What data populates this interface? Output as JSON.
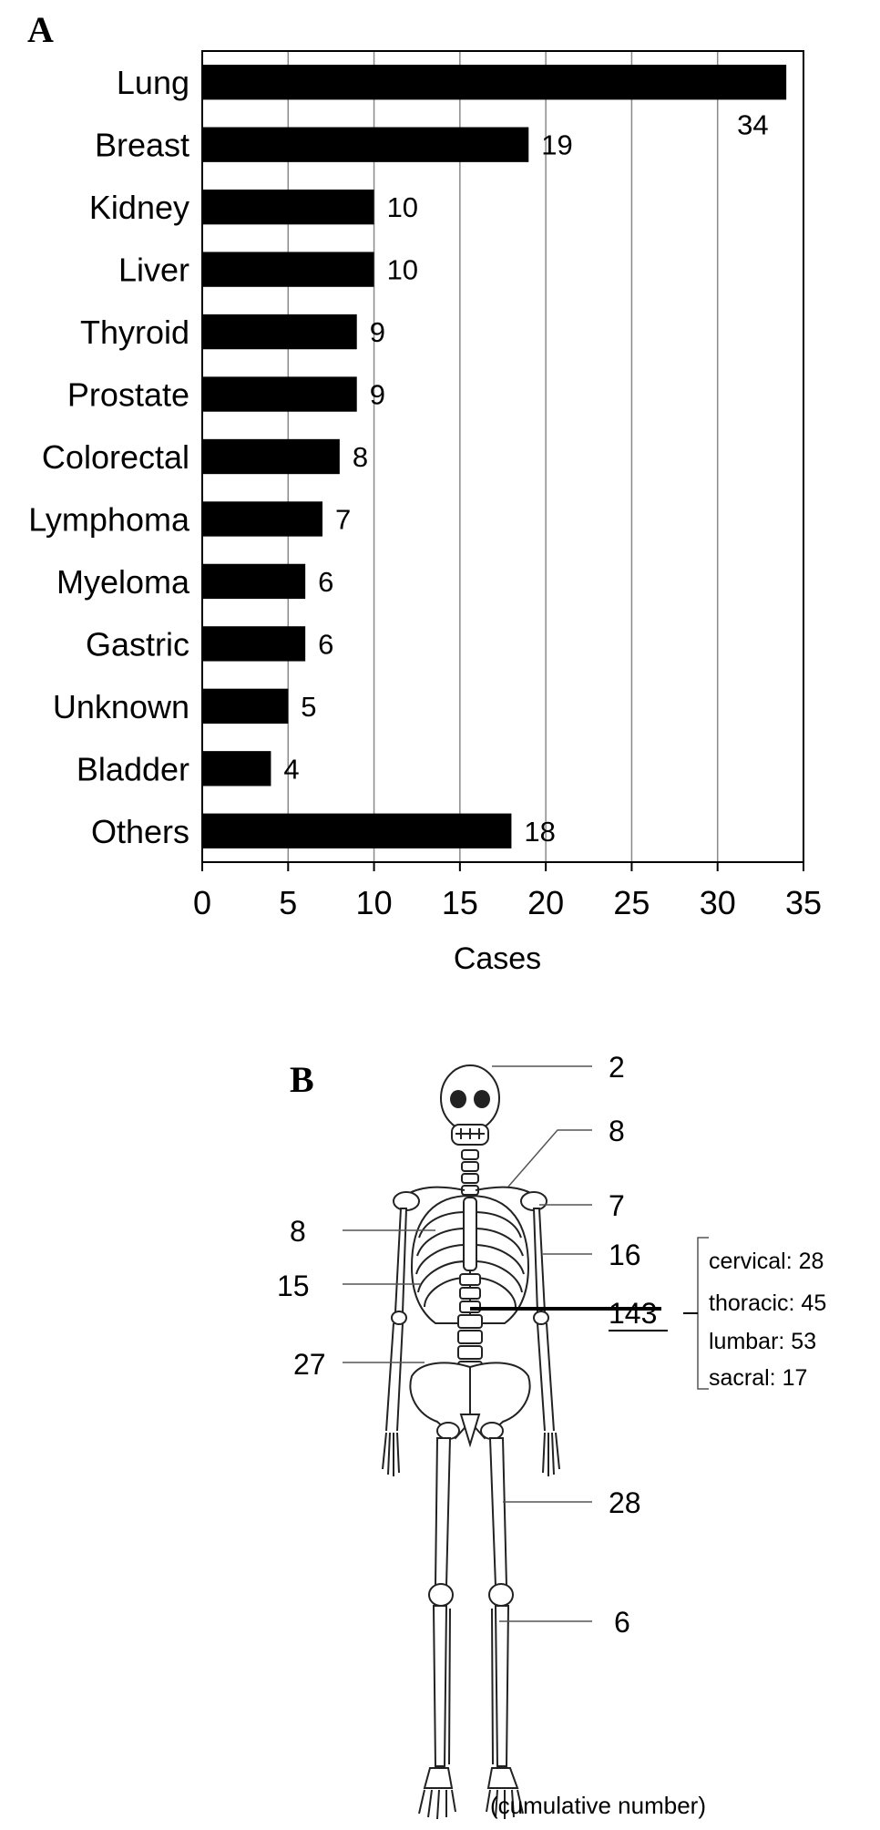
{
  "panel_a": {
    "letter": "A"
  },
  "panel_b": {
    "letter": "B"
  },
  "chart_data": {
    "type": "bar",
    "orientation": "horizontal",
    "categories": [
      "Lung",
      "Breast",
      "Kidney",
      "Liver",
      "Thyroid",
      "Prostate",
      "Colorectal",
      "Lymphoma",
      "Myeloma",
      "Gastric",
      "Unknown",
      "Bladder",
      "Others"
    ],
    "values": [
      34,
      19,
      10,
      10,
      9,
      9,
      8,
      7,
      6,
      6,
      5,
      4,
      18
    ],
    "value_labels": [
      "34",
      "19",
      "10",
      "10",
      "9",
      "9",
      "8",
      "7",
      "6",
      "6",
      "5",
      "4",
      "18"
    ],
    "xlabel": "Cases",
    "ylabel": "",
    "xlim": [
      0,
      35
    ],
    "xticks": [
      0,
      5,
      10,
      15,
      20,
      25,
      30,
      35
    ],
    "xtick_labels": [
      "0",
      "5",
      "10",
      "15",
      "20",
      "25",
      "30",
      "35"
    ],
    "grid": true,
    "bar_color": "#000000"
  },
  "skeleton": {
    "sites": [
      {
        "name": "skull",
        "count": "2"
      },
      {
        "name": "clavicle",
        "count": "8"
      },
      {
        "name": "scapula",
        "count": "7"
      },
      {
        "name": "sternum",
        "count": "8"
      },
      {
        "name": "humerus",
        "count": "16"
      },
      {
        "name": "ribs",
        "count": "15"
      },
      {
        "name": "spine",
        "count": "143"
      },
      {
        "name": "pelvis",
        "count": "27"
      },
      {
        "name": "femur",
        "count": "28"
      },
      {
        "name": "tibia",
        "count": "6"
      }
    ],
    "spine_breakdown": [
      "cervical: 28",
      "thoracic: 45",
      "lumbar: 53",
      "sacral: 17"
    ],
    "footnote": "(cumulative number)"
  }
}
